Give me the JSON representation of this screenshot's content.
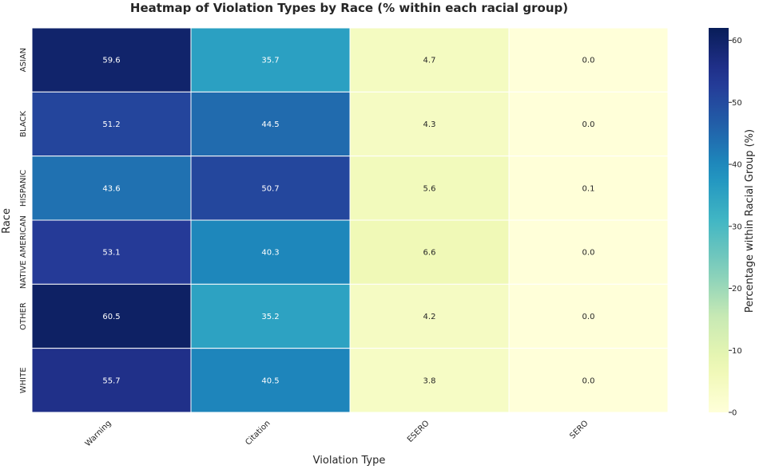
{
  "chart_data": {
    "type": "heatmap",
    "title": "Heatmap of Violation Types by Race (% within each racial group)",
    "xlabel": "Violation Type",
    "ylabel": "Race",
    "x_categories": [
      "Warning",
      "Citation",
      "ESERO",
      "SERO"
    ],
    "y_categories": [
      "ASIAN",
      "BLACK",
      "HISPANIC",
      "NATIVE AMERICAN",
      "OTHER",
      "WHITE"
    ],
    "values": [
      [
        59.6,
        35.7,
        4.7,
        0.0
      ],
      [
        51.2,
        44.5,
        4.3,
        0.0
      ],
      [
        43.6,
        50.7,
        5.6,
        0.1
      ],
      [
        53.1,
        40.3,
        6.6,
        0.0
      ],
      [
        60.5,
        35.2,
        4.2,
        0.0
      ],
      [
        55.7,
        40.5,
        3.8,
        0.0
      ]
    ],
    "value_labels": [
      [
        "59.6",
        "35.7",
        "4.7",
        "0.0"
      ],
      [
        "51.2",
        "44.5",
        "4.3",
        "0.0"
      ],
      [
        "43.6",
        "50.7",
        "5.6",
        "0.1"
      ],
      [
        "53.1",
        "40.3",
        "6.6",
        "0.0"
      ],
      [
        "60.5",
        "35.2",
        "4.2",
        "0.0"
      ],
      [
        "55.7",
        "40.5",
        "3.8",
        "0.0"
      ]
    ],
    "colormap": "YlGnBu",
    "vmin": 0,
    "vmax": 62,
    "colorbar": {
      "label": "Percentage within Racial Group (%)",
      "ticks": [
        0,
        10,
        20,
        30,
        40,
        50,
        60
      ],
      "tick_labels": [
        "0",
        "10",
        "20",
        "30",
        "40",
        "50",
        "60"
      ]
    },
    "grid": false,
    "legend": "colorbar-right"
  }
}
